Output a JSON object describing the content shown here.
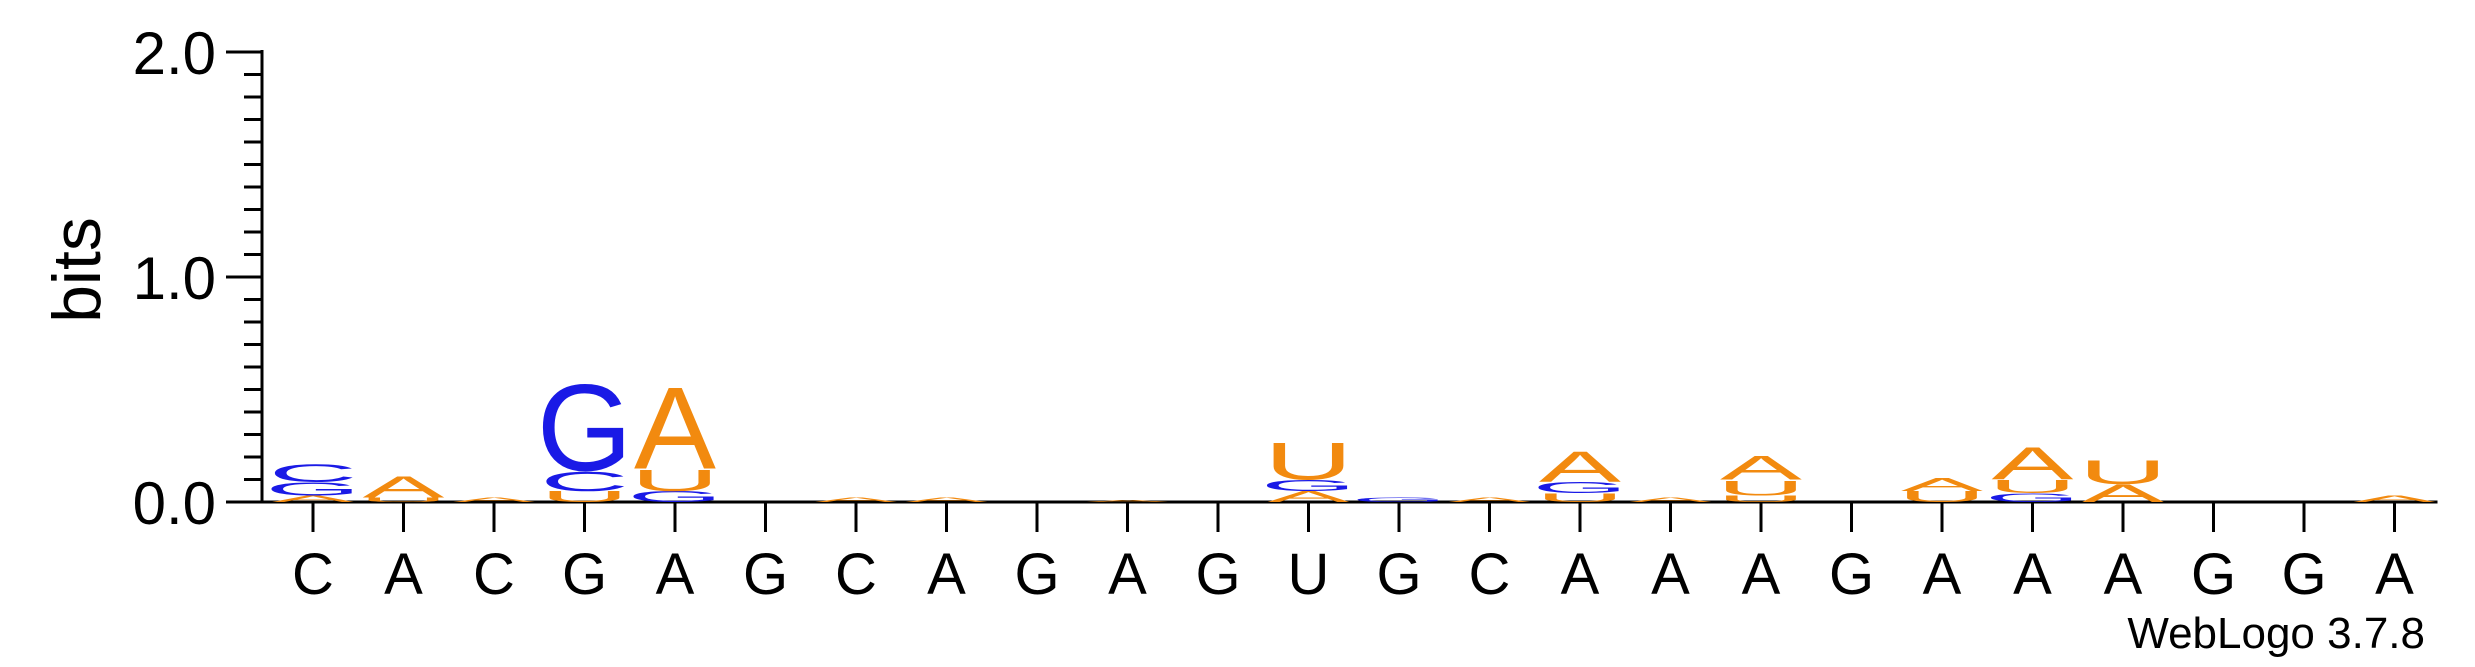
{
  "chart_data": {
    "type": "sequence-logo",
    "title": "",
    "ylabel": "bits",
    "xlabel": "",
    "ylim": [
      0,
      2.0
    ],
    "yticks": [
      "2.0",
      "1.0",
      "0.0"
    ],
    "grid": false,
    "credit": "WebLogo 3.7.8",
    "colors": {
      "A": "#f28a0f",
      "U": "#f28a0f",
      "G": "#1a1ae6",
      "C": "#1a1ae6"
    },
    "positions": [
      {
        "label": "C",
        "stack": [
          {
            "letter": "A",
            "bits": 0.03
          },
          {
            "letter": "G",
            "bits": 0.06
          },
          {
            "letter": "C",
            "bits": 0.08
          }
        ]
      },
      {
        "label": "A",
        "stack": [
          {
            "letter": "U",
            "bits": 0.02
          },
          {
            "letter": "A",
            "bits": 0.1
          }
        ]
      },
      {
        "label": "C",
        "stack": [
          {
            "letter": "A",
            "bits": 0.02
          }
        ]
      },
      {
        "label": "G",
        "stack": [
          {
            "letter": "U",
            "bits": 0.05
          },
          {
            "letter": "C",
            "bits": 0.09
          },
          {
            "letter": "G",
            "bits": 0.4
          }
        ]
      },
      {
        "label": "A",
        "stack": [
          {
            "letter": "G",
            "bits": 0.05
          },
          {
            "letter": "U",
            "bits": 0.1
          },
          {
            "letter": "A",
            "bits": 0.38
          }
        ]
      },
      {
        "label": "G",
        "stack": []
      },
      {
        "label": "C",
        "stack": [
          {
            "letter": "A",
            "bits": 0.02
          }
        ]
      },
      {
        "label": "A",
        "stack": [
          {
            "letter": "A",
            "bits": 0.02
          }
        ]
      },
      {
        "label": "G",
        "stack": []
      },
      {
        "label": "A",
        "stack": [
          {
            "letter": "A",
            "bits": 0.01
          }
        ]
      },
      {
        "label": "G",
        "stack": []
      },
      {
        "label": "U",
        "stack": [
          {
            "letter": "A",
            "bits": 0.05
          },
          {
            "letter": "G",
            "bits": 0.05
          },
          {
            "letter": "U",
            "bits": 0.17
          }
        ]
      },
      {
        "label": "G",
        "stack": [
          {
            "letter": "G",
            "bits": 0.02
          }
        ]
      },
      {
        "label": "C",
        "stack": [
          {
            "letter": "A",
            "bits": 0.02
          }
        ]
      },
      {
        "label": "A",
        "stack": [
          {
            "letter": "U",
            "bits": 0.04
          },
          {
            "letter": "G",
            "bits": 0.05
          },
          {
            "letter": "A",
            "bits": 0.14
          }
        ]
      },
      {
        "label": "A",
        "stack": [
          {
            "letter": "A",
            "bits": 0.02
          }
        ]
      },
      {
        "label": "A",
        "stack": [
          {
            "letter": "U",
            "bits": 0.03
          },
          {
            "letter": "U",
            "bits": 0.07
          },
          {
            "letter": "A",
            "bits": 0.11
          }
        ]
      },
      {
        "label": "G",
        "stack": []
      },
      {
        "label": "A",
        "stack": [
          {
            "letter": "U",
            "bits": 0.05
          },
          {
            "letter": "A",
            "bits": 0.06
          }
        ]
      },
      {
        "label": "A",
        "stack": [
          {
            "letter": "G",
            "bits": 0.04
          },
          {
            "letter": "U",
            "bits": 0.06
          },
          {
            "letter": "A",
            "bits": 0.15
          }
        ]
      },
      {
        "label": "A",
        "stack": [
          {
            "letter": "A",
            "bits": 0.08
          },
          {
            "letter": "U",
            "bits": 0.11
          }
        ]
      },
      {
        "label": "G",
        "stack": []
      },
      {
        "label": "G",
        "stack": []
      },
      {
        "label": "A",
        "stack": [
          {
            "letter": "A",
            "bits": 0.03
          }
        ]
      }
    ]
  }
}
